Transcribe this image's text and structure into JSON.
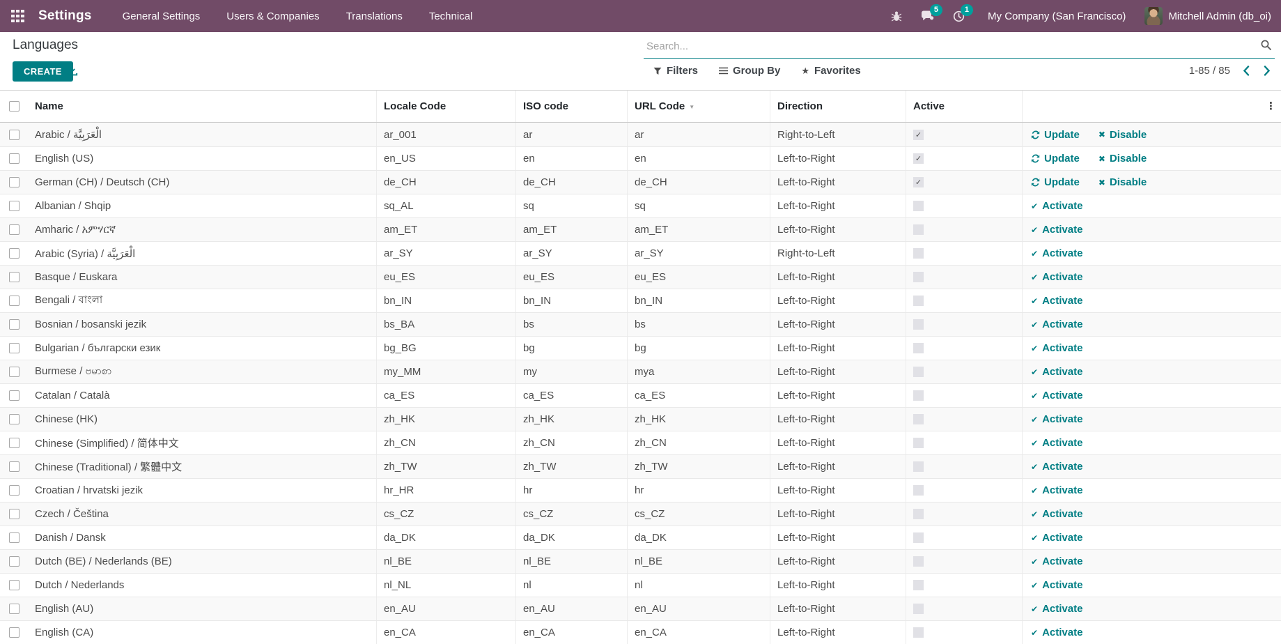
{
  "topbar": {
    "app_name": "Settings",
    "menu_items": [
      "General Settings",
      "Users & Companies",
      "Translations",
      "Technical"
    ],
    "systray": {
      "message_count": "5",
      "activity_count": "1",
      "company": "My Company (San Francisco)",
      "user": "Mitchell Admin (db_oi)"
    }
  },
  "control_panel": {
    "title": "Languages",
    "create_label": "CREATE",
    "search": {
      "placeholder": "Search..."
    },
    "filters_label": "Filters",
    "group_by_label": "Group By",
    "favorites_label": "Favorites",
    "pager": {
      "range": "1-85 / 85"
    }
  },
  "table": {
    "headers": {
      "name": "Name",
      "locale": "Locale Code",
      "iso": "ISO code",
      "url": "URL Code",
      "direction": "Direction",
      "active": "Active"
    },
    "action_labels": {
      "update": "Update",
      "disable": "Disable",
      "activate": "Activate"
    },
    "rows": [
      {
        "name": "Arabic / الْعَرَبِيَّة",
        "locale": "ar_001",
        "iso": "ar",
        "url": "ar",
        "direction": "Right-to-Left",
        "active": true
      },
      {
        "name": "English (US)",
        "locale": "en_US",
        "iso": "en",
        "url": "en",
        "direction": "Left-to-Right",
        "active": true
      },
      {
        "name": "German (CH) / Deutsch (CH)",
        "locale": "de_CH",
        "iso": "de_CH",
        "url": "de_CH",
        "direction": "Left-to-Right",
        "active": true
      },
      {
        "name": "Albanian / Shqip",
        "locale": "sq_AL",
        "iso": "sq",
        "url": "sq",
        "direction": "Left-to-Right",
        "active": false
      },
      {
        "name": "Amharic / አምሃርኛ",
        "locale": "am_ET",
        "iso": "am_ET",
        "url": "am_ET",
        "direction": "Left-to-Right",
        "active": false
      },
      {
        "name": "Arabic (Syria) / الْعَرَبِيَّة",
        "locale": "ar_SY",
        "iso": "ar_SY",
        "url": "ar_SY",
        "direction": "Right-to-Left",
        "active": false
      },
      {
        "name": "Basque / Euskara",
        "locale": "eu_ES",
        "iso": "eu_ES",
        "url": "eu_ES",
        "direction": "Left-to-Right",
        "active": false
      },
      {
        "name": "Bengali / বাংলা",
        "locale": "bn_IN",
        "iso": "bn_IN",
        "url": "bn_IN",
        "direction": "Left-to-Right",
        "active": false
      },
      {
        "name": "Bosnian / bosanski jezik",
        "locale": "bs_BA",
        "iso": "bs",
        "url": "bs",
        "direction": "Left-to-Right",
        "active": false
      },
      {
        "name": "Bulgarian / български език",
        "locale": "bg_BG",
        "iso": "bg",
        "url": "bg",
        "direction": "Left-to-Right",
        "active": false
      },
      {
        "name": "Burmese / ဗမာစာ",
        "locale": "my_MM",
        "iso": "my",
        "url": "mya",
        "direction": "Left-to-Right",
        "active": false
      },
      {
        "name": "Catalan / Català",
        "locale": "ca_ES",
        "iso": "ca_ES",
        "url": "ca_ES",
        "direction": "Left-to-Right",
        "active": false
      },
      {
        "name": "Chinese (HK)",
        "locale": "zh_HK",
        "iso": "zh_HK",
        "url": "zh_HK",
        "direction": "Left-to-Right",
        "active": false
      },
      {
        "name": "Chinese (Simplified) / 简体中文",
        "locale": "zh_CN",
        "iso": "zh_CN",
        "url": "zh_CN",
        "direction": "Left-to-Right",
        "active": false
      },
      {
        "name": "Chinese (Traditional) / 繁體中文",
        "locale": "zh_TW",
        "iso": "zh_TW",
        "url": "zh_TW",
        "direction": "Left-to-Right",
        "active": false
      },
      {
        "name": "Croatian / hrvatski jezik",
        "locale": "hr_HR",
        "iso": "hr",
        "url": "hr",
        "direction": "Left-to-Right",
        "active": false
      },
      {
        "name": "Czech / Čeština",
        "locale": "cs_CZ",
        "iso": "cs_CZ",
        "url": "cs_CZ",
        "direction": "Left-to-Right",
        "active": false
      },
      {
        "name": "Danish / Dansk",
        "locale": "da_DK",
        "iso": "da_DK",
        "url": "da_DK",
        "direction": "Left-to-Right",
        "active": false
      },
      {
        "name": "Dutch (BE) / Nederlands (BE)",
        "locale": "nl_BE",
        "iso": "nl_BE",
        "url": "nl_BE",
        "direction": "Left-to-Right",
        "active": false
      },
      {
        "name": "Dutch / Nederlands",
        "locale": "nl_NL",
        "iso": "nl",
        "url": "nl",
        "direction": "Left-to-Right",
        "active": false
      },
      {
        "name": "English (AU)",
        "locale": "en_AU",
        "iso": "en_AU",
        "url": "en_AU",
        "direction": "Left-to-Right",
        "active": false
      },
      {
        "name": "English (CA)",
        "locale": "en_CA",
        "iso": "en_CA",
        "url": "en_CA",
        "direction": "Left-to-Right",
        "active": false
      }
    ]
  },
  "colors": {
    "topbar": "#714B67",
    "accent": "#017e84",
    "badge": "#00a09d"
  }
}
